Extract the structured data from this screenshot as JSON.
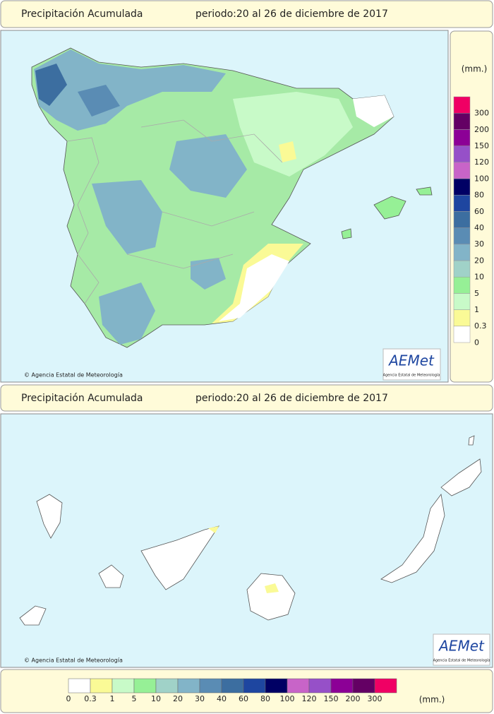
{
  "top_panel": {
    "title": "Precipitación Acumulada",
    "period": "periodo:20 al 26 de diciembre de 2017",
    "credit": "© Agencia Estatal de Meteorología",
    "logo": "AEMet",
    "logo_subtitle": "Agencia Estatal de Meteorología"
  },
  "side_legend": {
    "unit": "(mm.)"
  },
  "bottom_panel": {
    "title": "Precipitación Acumulada",
    "period": "periodo:20 al 26 de diciembre de 2017",
    "credit": "© Agencia Estatal de Meteorología",
    "logo": "AEMet",
    "logo_subtitle": "Agencia Estatal de Meteorología"
  },
  "legend": {
    "unit": "(mm.)",
    "items": [
      {
        "label": "0",
        "color": "#ffffff"
      },
      {
        "label": "0.3",
        "color": "#fafa96"
      },
      {
        "label": "1",
        "color": "#c8fac8"
      },
      {
        "label": "5",
        "color": "#96f096"
      },
      {
        "label": "10",
        "color": "#a0d2c8"
      },
      {
        "label": "20",
        "color": "#82b4c8"
      },
      {
        "label": "30",
        "color": "#5a8cb4"
      },
      {
        "label": "40",
        "color": "#3c6ea0"
      },
      {
        "label": "60",
        "color": "#1e46a0"
      },
      {
        "label": "80",
        "color": "#000064"
      },
      {
        "label": "100",
        "color": "#c864c8"
      },
      {
        "label": "120",
        "color": "#9650c8"
      },
      {
        "label": "150",
        "color": "#8c0096"
      },
      {
        "label": "200",
        "color": "#640064"
      },
      {
        "label": "300",
        "color": "#f00064"
      }
    ]
  }
}
